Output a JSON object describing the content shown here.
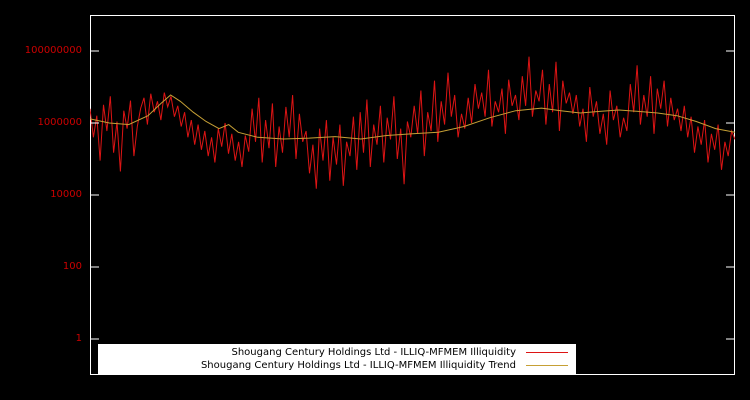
{
  "chart": {
    "background": "#000000",
    "frame_color": "#ffffff",
    "tick_label_color": "#cc0000",
    "legend_background": "#ffffff",
    "legend_text_color": "#000000"
  },
  "chart_data": {
    "type": "line",
    "title": "",
    "xlabel": "",
    "ylabel": "",
    "y_scale": "log",
    "ylim": [
      0.1,
      1000000000
    ],
    "y_tick_values": [
      1,
      100,
      10000,
      1000000,
      100000000
    ],
    "y_tick_labels": [
      "1",
      "100",
      "10000",
      "1000000",
      "100000000"
    ],
    "x_range": [
      0,
      1
    ],
    "grid": false,
    "legend": {
      "position": "bottom-center",
      "entries": [
        {
          "label": "Shougang Century Holdings Ltd - ILLIQ-MFMEM Illiquidity"
        },
        {
          "label": "Shougang Century Holdings Ltd - ILLIQ-MFMEM Illiquidity Trend"
        }
      ]
    },
    "series": [
      {
        "name": "Shougang Century Holdings Ltd - ILLIQ-MFMEM Illiquidity",
        "color": "#dd1414",
        "values": [
          2500000.0,
          400000.0,
          1600000.0,
          90000.0,
          3200000.0,
          600000.0,
          5500000.0,
          150000.0,
          1100000.0,
          45000.0,
          2200000.0,
          700000.0,
          4200000.0,
          120000.0,
          800000.0,
          2600000.0,
          5000000.0,
          900000.0,
          6500000.0,
          2000000.0,
          4000000.0,
          1200000.0,
          7000000.0,
          2800000.0,
          5500000.0,
          1500000.0,
          3000000.0,
          800000.0,
          2000000.0,
          400000.0,
          1200000.0,
          250000.0,
          900000.0,
          180000.0,
          600000.0,
          120000.0,
          400000.0,
          80000.0,
          700000.0,
          220000.0,
          1000000.0,
          140000.0,
          500000.0,
          90000.0,
          300000.0,
          60000.0,
          450000.0,
          160000.0,
          2500000.0,
          300000.0,
          5000000.0,
          80000.0,
          1200000.0,
          200000.0,
          3500000.0,
          60000.0,
          800000.0,
          150000.0,
          2800000.0,
          400000.0,
          6000000.0,
          100000.0,
          1800000.0,
          300000.0,
          600000.0,
          40000.0,
          250000.0,
          15000.0,
          700000.0,
          90000.0,
          1200000.0,
          25000.0,
          400000.0,
          70000.0,
          900000.0,
          18000.0,
          300000.0,
          120000.0,
          1500000.0,
          50000.0,
          2000000.0,
          150000.0,
          4500000.0,
          60000.0,
          900000.0,
          250000.0,
          3000000.0,
          80000.0,
          1400000.0,
          350000.0,
          5500000.0,
          100000.0,
          700000.0,
          20000.0,
          1100000.0,
          400000.0,
          3000000.0,
          500000.0,
          8000000.0,
          120000.0,
          2000000.0,
          600000.0,
          15000000.0,
          300000.0,
          4000000.0,
          900000.0,
          25000000.0,
          1500000.0,
          6000000.0,
          400000.0,
          1800000.0,
          700000.0,
          5000000.0,
          1000000.0,
          12000000.0,
          2500000.0,
          7000000.0,
          1500000.0,
          30000000.0,
          800000.0,
          4000000.0,
          2000000.0,
          9000000.0,
          500000.0,
          16000000.0,
          3000000.0,
          6000000.0,
          1200000.0,
          20000000.0,
          3000000.0,
          70000000.0,
          1500000.0,
          8000000.0,
          4000000.0,
          30000000.0,
          900000.0,
          12000000.0,
          2000000.0,
          50000000.0,
          600000.0,
          15000000.0,
          3500000.0,
          7000000.0,
          1800000.0,
          6000000.0,
          800000.0,
          2500000.0,
          300000.0,
          10000000.0,
          1500000.0,
          4000000.0,
          500000.0,
          1800000.0,
          250000.0,
          8000000.0,
          1200000.0,
          3000000.0,
          400000.0,
          1400000.0,
          600000.0,
          12000000.0,
          2000000.0,
          40000000.0,
          900000.0,
          6000000.0,
          1500000.0,
          20000000.0,
          500000.0,
          9000000.0,
          2500000.0,
          15000000.0,
          800000.0,
          5000000.0,
          1200000.0,
          2500000.0,
          600000.0,
          3000000.0,
          400000.0,
          1500000.0,
          150000.0,
          800000.0,
          250000.0,
          1200000.0,
          80000.0,
          500000.0,
          180000.0,
          900000.0,
          50000.0,
          300000.0,
          120000.0,
          600000.0,
          350000.0
        ]
      },
      {
        "name": "Shougang Century Holdings Ltd - ILLIQ-MFMEM Illiquidity Trend",
        "color": "#c6a035",
        "points": [
          [
            0.0,
            1300000.0
          ],
          [
            0.03,
            1000000.0
          ],
          [
            0.06,
            900000.0
          ],
          [
            0.09,
            1600000.0
          ],
          [
            0.11,
            3500000.0
          ],
          [
            0.125,
            6000000.0
          ],
          [
            0.14,
            4000000.0
          ],
          [
            0.16,
            2000000.0
          ],
          [
            0.18,
            1100000.0
          ],
          [
            0.2,
            700000.0
          ],
          [
            0.215,
            900000.0
          ],
          [
            0.23,
            550000.0
          ],
          [
            0.26,
            400000.0
          ],
          [
            0.3,
            360000.0
          ],
          [
            0.34,
            380000.0
          ],
          [
            0.38,
            420000.0
          ],
          [
            0.42,
            360000.0
          ],
          [
            0.46,
            450000.0
          ],
          [
            0.5,
            500000.0
          ],
          [
            0.54,
            550000.0
          ],
          [
            0.58,
            800000.0
          ],
          [
            0.62,
            1400000.0
          ],
          [
            0.66,
            2200000.0
          ],
          [
            0.7,
            2600000.0
          ],
          [
            0.73,
            2200000.0
          ],
          [
            0.76,
            1900000.0
          ],
          [
            0.79,
            2100000.0
          ],
          [
            0.82,
            2300000.0
          ],
          [
            0.85,
            2100000.0
          ],
          [
            0.88,
            1900000.0
          ],
          [
            0.91,
            1600000.0
          ],
          [
            0.94,
            1100000.0
          ],
          [
            0.97,
            700000.0
          ],
          [
            1.0,
            550000.0
          ]
        ]
      }
    ]
  }
}
